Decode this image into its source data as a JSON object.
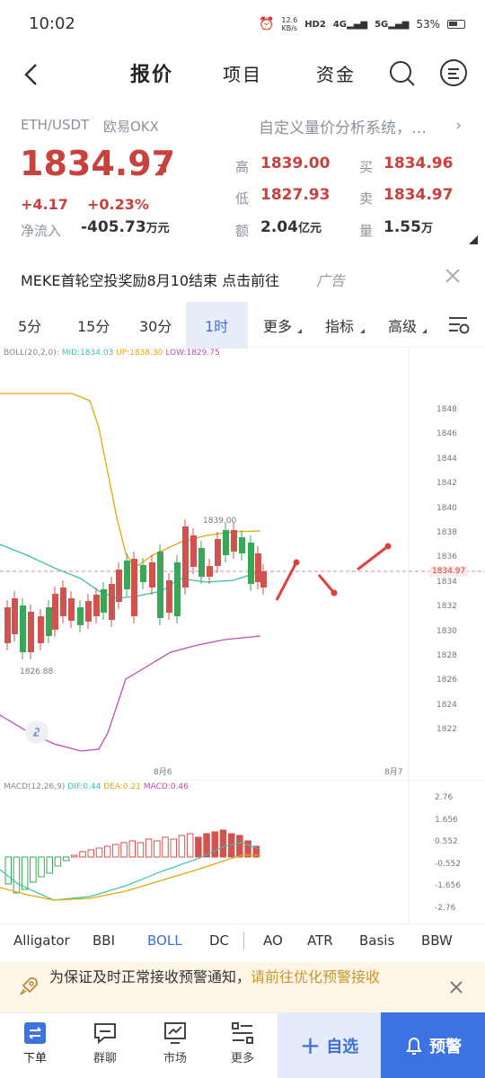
{
  "status_bar": {
    "time": "10:02",
    "net_speed": "12.6",
    "net_unit": "KB/s",
    "hd": "HD2",
    "net4g": "4G",
    "net5g": "5G",
    "battery": "53%"
  },
  "nav": {
    "tabs": [
      "报价",
      "项目",
      "资金"
    ]
  },
  "ticker": {
    "pair": "ETH/USDT",
    "exchange": "欧易OKX",
    "price": "1834.97",
    "change": "+4.17",
    "change_pct": "+0.23%",
    "netflow_label": "净流入",
    "netflow_value": "-405.73",
    "netflow_unit": "万元",
    "promo": "自定义量价分析系统，…",
    "high_label": "高",
    "high_value": "1839.00",
    "buy_label": "买",
    "buy_value": "1834.96",
    "low_label": "低",
    "low_value": "1827.93",
    "sell_label": "卖",
    "sell_value": "1834.97",
    "amount_label": "额",
    "amount_value": "2.04",
    "amount_unit": "亿元",
    "volume_label": "量",
    "volume_value": "1.55",
    "volume_unit": "万"
  },
  "ad": {
    "text": "MEKE首轮空投奖励8月10结束 点击前往",
    "tag": "广告"
  },
  "periods": [
    "5分",
    "15分",
    "30分",
    "1时",
    "更多",
    "指标",
    "高级"
  ],
  "active_period": "1时",
  "boll": {
    "label": "BOLL(20,2,0):",
    "mid": "MID:1834.03",
    "up": "UP:1838.30",
    "low": "LOW:1829.75"
  },
  "price_axis": [
    "1848",
    "1846",
    "1844",
    "1842",
    "1840",
    "1838",
    "1836",
    "1834",
    "1832",
    "1830",
    "1828",
    "1826",
    "1824",
    "1822"
  ],
  "current_price_tag": "1834.97",
  "high_mark": "1839.00",
  "low_mark": "1826.88",
  "date_labels": [
    "8月6",
    "8月7"
  ],
  "macd": {
    "label": "MACD(12,26,9)",
    "dif": "DIF:0.44",
    "dea": "DEA:0.21",
    "macd": "MACD:0.46",
    "axis": [
      "2.76",
      "1.656",
      "0.552",
      "-0.552",
      "-1.656",
      "-2.76"
    ]
  },
  "indicators": [
    "Alligator",
    "BBI",
    "BOLL",
    "DC",
    "AO",
    "ATR",
    "Basis",
    "BBW"
  ],
  "active_indicator": "BOLL",
  "notice": {
    "text": "为保证及时正常接收预警通知，",
    "link": "请前往优化预警接收"
  },
  "bottom_nav": [
    "下单",
    "群聊",
    "市场",
    "更多"
  ],
  "watch_button": "自选",
  "alert_button": "预警",
  "colors": {
    "up": "#d2534e",
    "down": "#3aa758",
    "accent": "#3d6fd8",
    "alert_bg": "#3d72e2"
  }
}
